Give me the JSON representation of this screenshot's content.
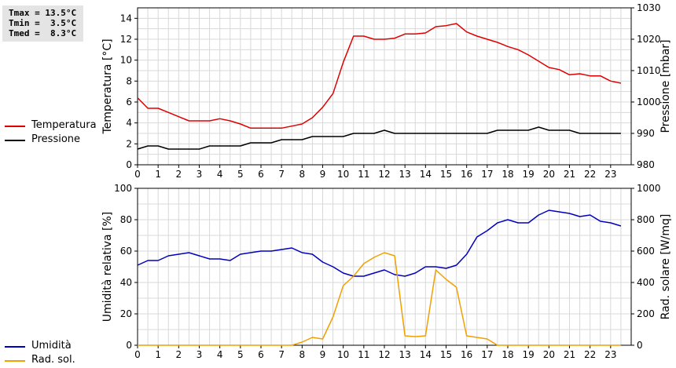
{
  "stats": {
    "tmax": "Tmax = 13.5°C",
    "tmin": "Tmin =  3.5°C",
    "tmed": "Tmed =  8.3°C"
  },
  "colors": {
    "temperature": "#e00000",
    "pressure": "#000000",
    "humidity": "#0000c0",
    "radiation": "#f0a000",
    "grid": "#d8d8d8"
  },
  "chart_data": [
    {
      "type": "line",
      "grid": true,
      "legend": "left",
      "x_ticks": [
        0,
        1,
        2,
        3,
        4,
        5,
        6,
        7,
        8,
        9,
        10,
        11,
        12,
        13,
        14,
        15,
        16,
        17,
        18,
        19,
        20,
        21,
        22,
        23
      ],
      "xlim": [
        0,
        24
      ],
      "ylabel": "Temperatura [°C]",
      "ylim": [
        0,
        15
      ],
      "y_ticks": [
        0,
        2,
        4,
        6,
        8,
        10,
        12,
        14
      ],
      "ylabel_right": "Pressione [mbar]",
      "ylim_right": [
        980,
        1030
      ],
      "y_ticks_right": [
        980,
        990,
        1000,
        1010,
        1020,
        1030
      ],
      "series": [
        {
          "name": "Temperatura",
          "axis": "left",
          "x": [
            0,
            0.5,
            1,
            1.5,
            2,
            2.5,
            3,
            3.5,
            4,
            4.5,
            5,
            5.5,
            6,
            6.5,
            7,
            7.5,
            8,
            8.5,
            9,
            9.5,
            10,
            10.5,
            11,
            11.5,
            12,
            12.5,
            13,
            13.5,
            14,
            14.5,
            15,
            15.5,
            16,
            16.5,
            17,
            17.5,
            18,
            18.5,
            19,
            19.5,
            20,
            20.5,
            21,
            21.5,
            22,
            22.5,
            23,
            23.5
          ],
          "y": [
            6.4,
            5.4,
            5.4,
            5.0,
            4.6,
            4.2,
            4.2,
            4.2,
            4.4,
            4.2,
            3.9,
            3.5,
            3.5,
            3.5,
            3.5,
            3.7,
            3.9,
            4.5,
            5.5,
            6.8,
            9.8,
            12.3,
            12.3,
            12.0,
            12.0,
            12.1,
            12.5,
            12.5,
            12.6,
            13.2,
            13.3,
            13.5,
            12.7,
            12.3,
            12.0,
            11.7,
            11.3,
            11.0,
            10.5,
            9.9,
            9.3,
            9.1,
            8.6,
            8.7,
            8.5,
            8.5,
            8.0,
            7.8
          ]
        },
        {
          "name": "Pressione",
          "axis": "right",
          "x": [
            0,
            0.5,
            1,
            1.5,
            2,
            2.5,
            3,
            3.5,
            4,
            4.5,
            5,
            5.5,
            6,
            6.5,
            7,
            7.5,
            8,
            8.5,
            9,
            9.5,
            10,
            10.5,
            11,
            11.5,
            12,
            12.5,
            13,
            13.5,
            14,
            14.5,
            15,
            15.5,
            16,
            16.5,
            17,
            17.5,
            18,
            18.5,
            19,
            19.5,
            20,
            20.5,
            21,
            21.5,
            22,
            22.5,
            23,
            23.5
          ],
          "y": [
            985,
            986,
            986,
            985,
            985,
            985,
            985,
            986,
            986,
            986,
            986,
            987,
            987,
            987,
            988,
            988,
            988,
            989,
            989,
            989,
            989,
            990,
            990,
            990,
            991,
            990,
            990,
            990,
            990,
            990,
            990,
            990,
            990,
            990,
            990,
            991,
            991,
            991,
            991,
            992,
            991,
            991,
            991,
            990,
            990,
            990,
            990,
            990
          ]
        }
      ]
    },
    {
      "type": "line",
      "grid": true,
      "legend": "left",
      "x_ticks": [
        0,
        1,
        2,
        3,
        4,
        5,
        6,
        7,
        8,
        9,
        10,
        11,
        12,
        13,
        14,
        15,
        16,
        17,
        18,
        19,
        20,
        21,
        22,
        23
      ],
      "xlim": [
        0,
        24
      ],
      "ylabel": "Umidità relativa [%]",
      "ylim": [
        0,
        100
      ],
      "y_ticks": [
        0,
        20,
        40,
        60,
        80,
        100
      ],
      "ylabel_right": "Rad. solare [W/mq]",
      "ylim_right": [
        0,
        1000
      ],
      "y_ticks_right": [
        0,
        200,
        400,
        600,
        800,
        1000
      ],
      "series": [
        {
          "name": "Umidità",
          "axis": "left",
          "x": [
            0,
            0.5,
            1,
            1.5,
            2,
            2.5,
            3,
            3.5,
            4,
            4.5,
            5,
            5.5,
            6,
            6.5,
            7,
            7.5,
            8,
            8.5,
            9,
            9.5,
            10,
            10.5,
            11,
            11.5,
            12,
            12.5,
            13,
            13.5,
            14,
            14.5,
            15,
            15.5,
            16,
            16.5,
            17,
            17.5,
            18,
            18.5,
            19,
            19.5,
            20,
            20.5,
            21,
            21.5,
            22,
            22.5,
            23,
            23.5
          ],
          "y": [
            51,
            54,
            54,
            57,
            58,
            59,
            57,
            55,
            55,
            54,
            58,
            59,
            60,
            60,
            61,
            62,
            59,
            58,
            53,
            50,
            46,
            44,
            44,
            46,
            48,
            45,
            44,
            46,
            50,
            50,
            49,
            51,
            58,
            69,
            73,
            78,
            80,
            78,
            78,
            83,
            86,
            85,
            84,
            82,
            83,
            79,
            78,
            76
          ]
        },
        {
          "name": "Rad. sol.",
          "axis": "right",
          "x": [
            0,
            0.5,
            1,
            1.5,
            2,
            2.5,
            3,
            3.5,
            4,
            4.5,
            5,
            5.5,
            6,
            6.5,
            7,
            7.5,
            8,
            8.5,
            9,
            9.5,
            10,
            10.5,
            11,
            11.5,
            12,
            12.5,
            13,
            13.5,
            14,
            14.5,
            15,
            15.5,
            16,
            16.5,
            17,
            17.5,
            18,
            18.5,
            19,
            19.5,
            20,
            20.5,
            21,
            21.5,
            22,
            22.5,
            23,
            23.5
          ],
          "y": [
            0,
            0,
            0,
            0,
            0,
            0,
            0,
            0,
            0,
            0,
            0,
            0,
            0,
            0,
            0,
            0,
            20,
            50,
            40,
            180,
            380,
            440,
            520,
            560,
            590,
            570,
            60,
            55,
            60,
            480,
            420,
            370,
            60,
            50,
            40,
            0,
            0,
            0,
            0,
            0,
            0,
            0,
            0,
            0,
            0,
            0,
            0,
            0
          ]
        }
      ]
    }
  ]
}
